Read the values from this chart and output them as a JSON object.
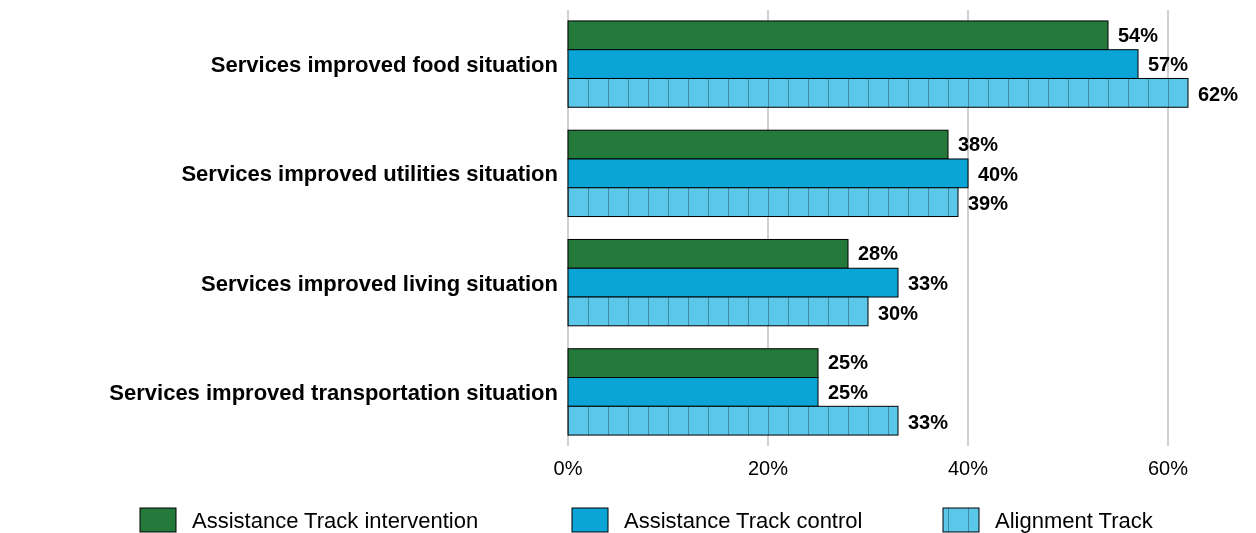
{
  "chart_data": {
    "type": "bar",
    "orientation": "horizontal",
    "categories": [
      "Services improved food situation",
      "Services improved utilities situation",
      "Services improved living situation",
      "Services improved transportation situation"
    ],
    "series": [
      {
        "name": "Assistance Track intervention",
        "color": "#237a3b",
        "values": [
          54,
          38,
          28,
          25
        ],
        "value_labels": [
          "54%",
          "38%",
          "28%",
          "25%"
        ]
      },
      {
        "name": "Assistance Track control",
        "color": "#0aa5d6",
        "values": [
          57,
          40,
          33,
          25
        ],
        "value_labels": [
          "57%",
          "40%",
          "33%",
          "25%"
        ]
      },
      {
        "name": "Alignment Track",
        "color": "#5bc8ea",
        "values": [
          62,
          39,
          30,
          33
        ],
        "value_labels": [
          "62%",
          "39%",
          "30%",
          "33%"
        ]
      }
    ],
    "xlim": [
      0,
      62
    ],
    "xticks": [
      {
        "value": 0,
        "label": "0%"
      },
      {
        "value": 20,
        "label": "20%"
      },
      {
        "value": 40,
        "label": "40%"
      },
      {
        "value": 60,
        "label": "60%"
      }
    ],
    "grid": "x",
    "legend": "bottom"
  }
}
